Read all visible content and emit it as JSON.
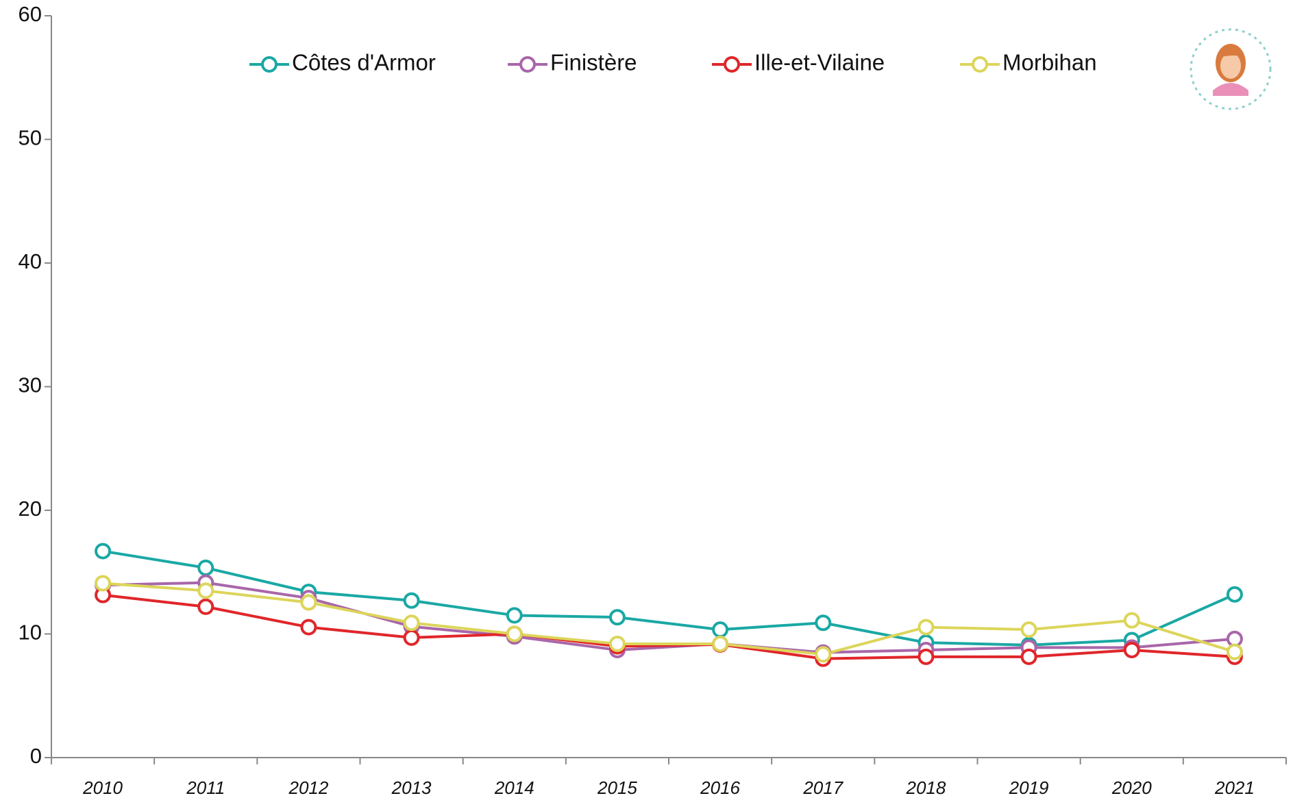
{
  "chart_data": {
    "type": "line",
    "categories": [
      "2010",
      "2011",
      "2012",
      "2013",
      "2014",
      "2015",
      "2016",
      "2017",
      "2018",
      "2019",
      "2020",
      "2021"
    ],
    "series": [
      {
        "name": "Côtes d'Armor",
        "color": "#1aa8a4",
        "values": [
          16.7,
          15.35,
          13.4,
          12.7,
          11.5,
          11.35,
          10.35,
          10.9,
          9.3,
          9.1,
          9.5,
          13.2
        ]
      },
      {
        "name": "Finistère",
        "color": "#a966a9",
        "values": [
          13.95,
          14.15,
          12.9,
          10.6,
          9.8,
          8.7,
          9.2,
          8.5,
          8.7,
          8.9,
          8.9,
          9.6
        ]
      },
      {
        "name": "Ille-et-Vilaine",
        "color": "#e0262a",
        "values": [
          13.15,
          12.2,
          10.55,
          9.7,
          10.0,
          9.0,
          9.15,
          8.0,
          8.15,
          8.15,
          8.7,
          8.15
        ]
      },
      {
        "name": "Morbihan",
        "color": "#dcd55a",
        "values": [
          14.1,
          13.5,
          12.55,
          10.9,
          10.0,
          9.2,
          9.2,
          8.35,
          10.55,
          10.35,
          11.1,
          8.55
        ]
      }
    ],
    "ylim": [
      0,
      60
    ],
    "yticks": [
      0,
      10,
      20,
      30,
      40,
      50,
      60
    ],
    "legend": "top"
  }
}
